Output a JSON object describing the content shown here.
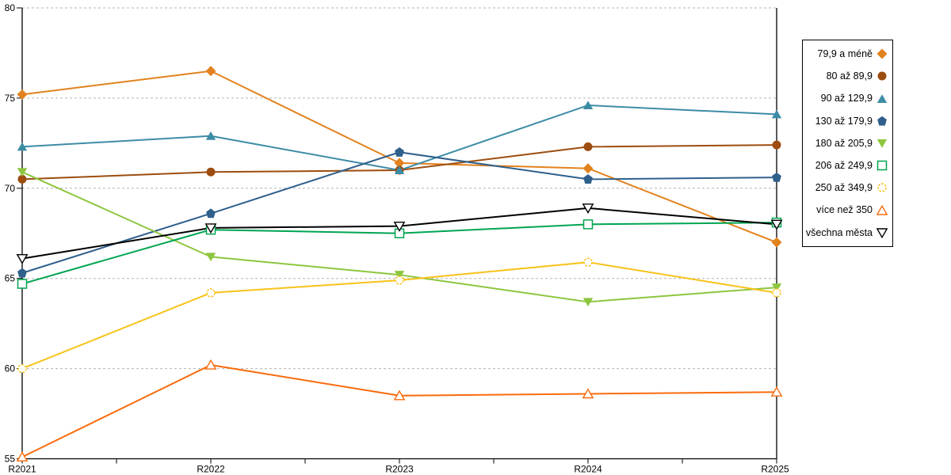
{
  "chart_data": {
    "type": "line",
    "title": "",
    "xlabel": "",
    "ylabel": "",
    "categories": [
      "R2021",
      "R2022",
      "R2023",
      "R2024",
      "R2025"
    ],
    "ylim": [
      55,
      80
    ],
    "yticks": [
      55,
      60,
      65,
      70,
      75,
      80
    ],
    "grid": "horizontal dashed gridlines at 60,65,70,75,80",
    "legend_position": "right",
    "series": [
      {
        "name": "79,9 a méně",
        "marker": "diamond",
        "fill": true,
        "color": "#E2821E",
        "values": [
          75.2,
          76.5,
          71.4,
          71.1,
          67.0
        ]
      },
      {
        "name": "80 až 89,9",
        "marker": "circle",
        "fill": true,
        "color": "#9C4D0F",
        "values": [
          70.5,
          70.9,
          71.0,
          72.3,
          72.4
        ]
      },
      {
        "name": "90 až 129,9",
        "marker": "triangle-up",
        "fill": true,
        "color": "#3D8CA6",
        "values": [
          72.3,
          72.9,
          71.0,
          74.6,
          74.1
        ]
      },
      {
        "name": "130 až 179,9",
        "marker": "pentagon",
        "fill": true,
        "color": "#2F608C",
        "values": [
          65.3,
          68.6,
          72.0,
          70.5,
          70.6
        ]
      },
      {
        "name": "180 až 205,9",
        "marker": "triangle-down",
        "fill": true,
        "color": "#8DC63F",
        "values": [
          70.9,
          66.2,
          65.2,
          63.7,
          64.5
        ]
      },
      {
        "name": "206 až 249,9",
        "marker": "square",
        "fill": false,
        "color": "#00A551",
        "values": [
          64.7,
          67.7,
          67.5,
          68.0,
          68.1
        ]
      },
      {
        "name": "250 až 349,9",
        "marker": "circle",
        "fill": false,
        "color": "#F8C21A",
        "values": [
          60.0,
          64.2,
          64.9,
          65.9,
          64.2
        ]
      },
      {
        "name": "více než 350",
        "marker": "triangle-up",
        "fill": false,
        "color": "#F96B0D",
        "values": [
          55.1,
          60.2,
          58.5,
          58.6,
          58.7
        ]
      },
      {
        "name": "všechna města",
        "marker": "triangle-down",
        "fill": false,
        "color": "#000000",
        "values": [
          66.1,
          67.8,
          67.9,
          68.9,
          68.0
        ]
      }
    ],
    "colors": {
      "axis": "#000000",
      "gridline": "#b3b3b3",
      "background": "#ffffff",
      "text": "#000000"
    }
  }
}
